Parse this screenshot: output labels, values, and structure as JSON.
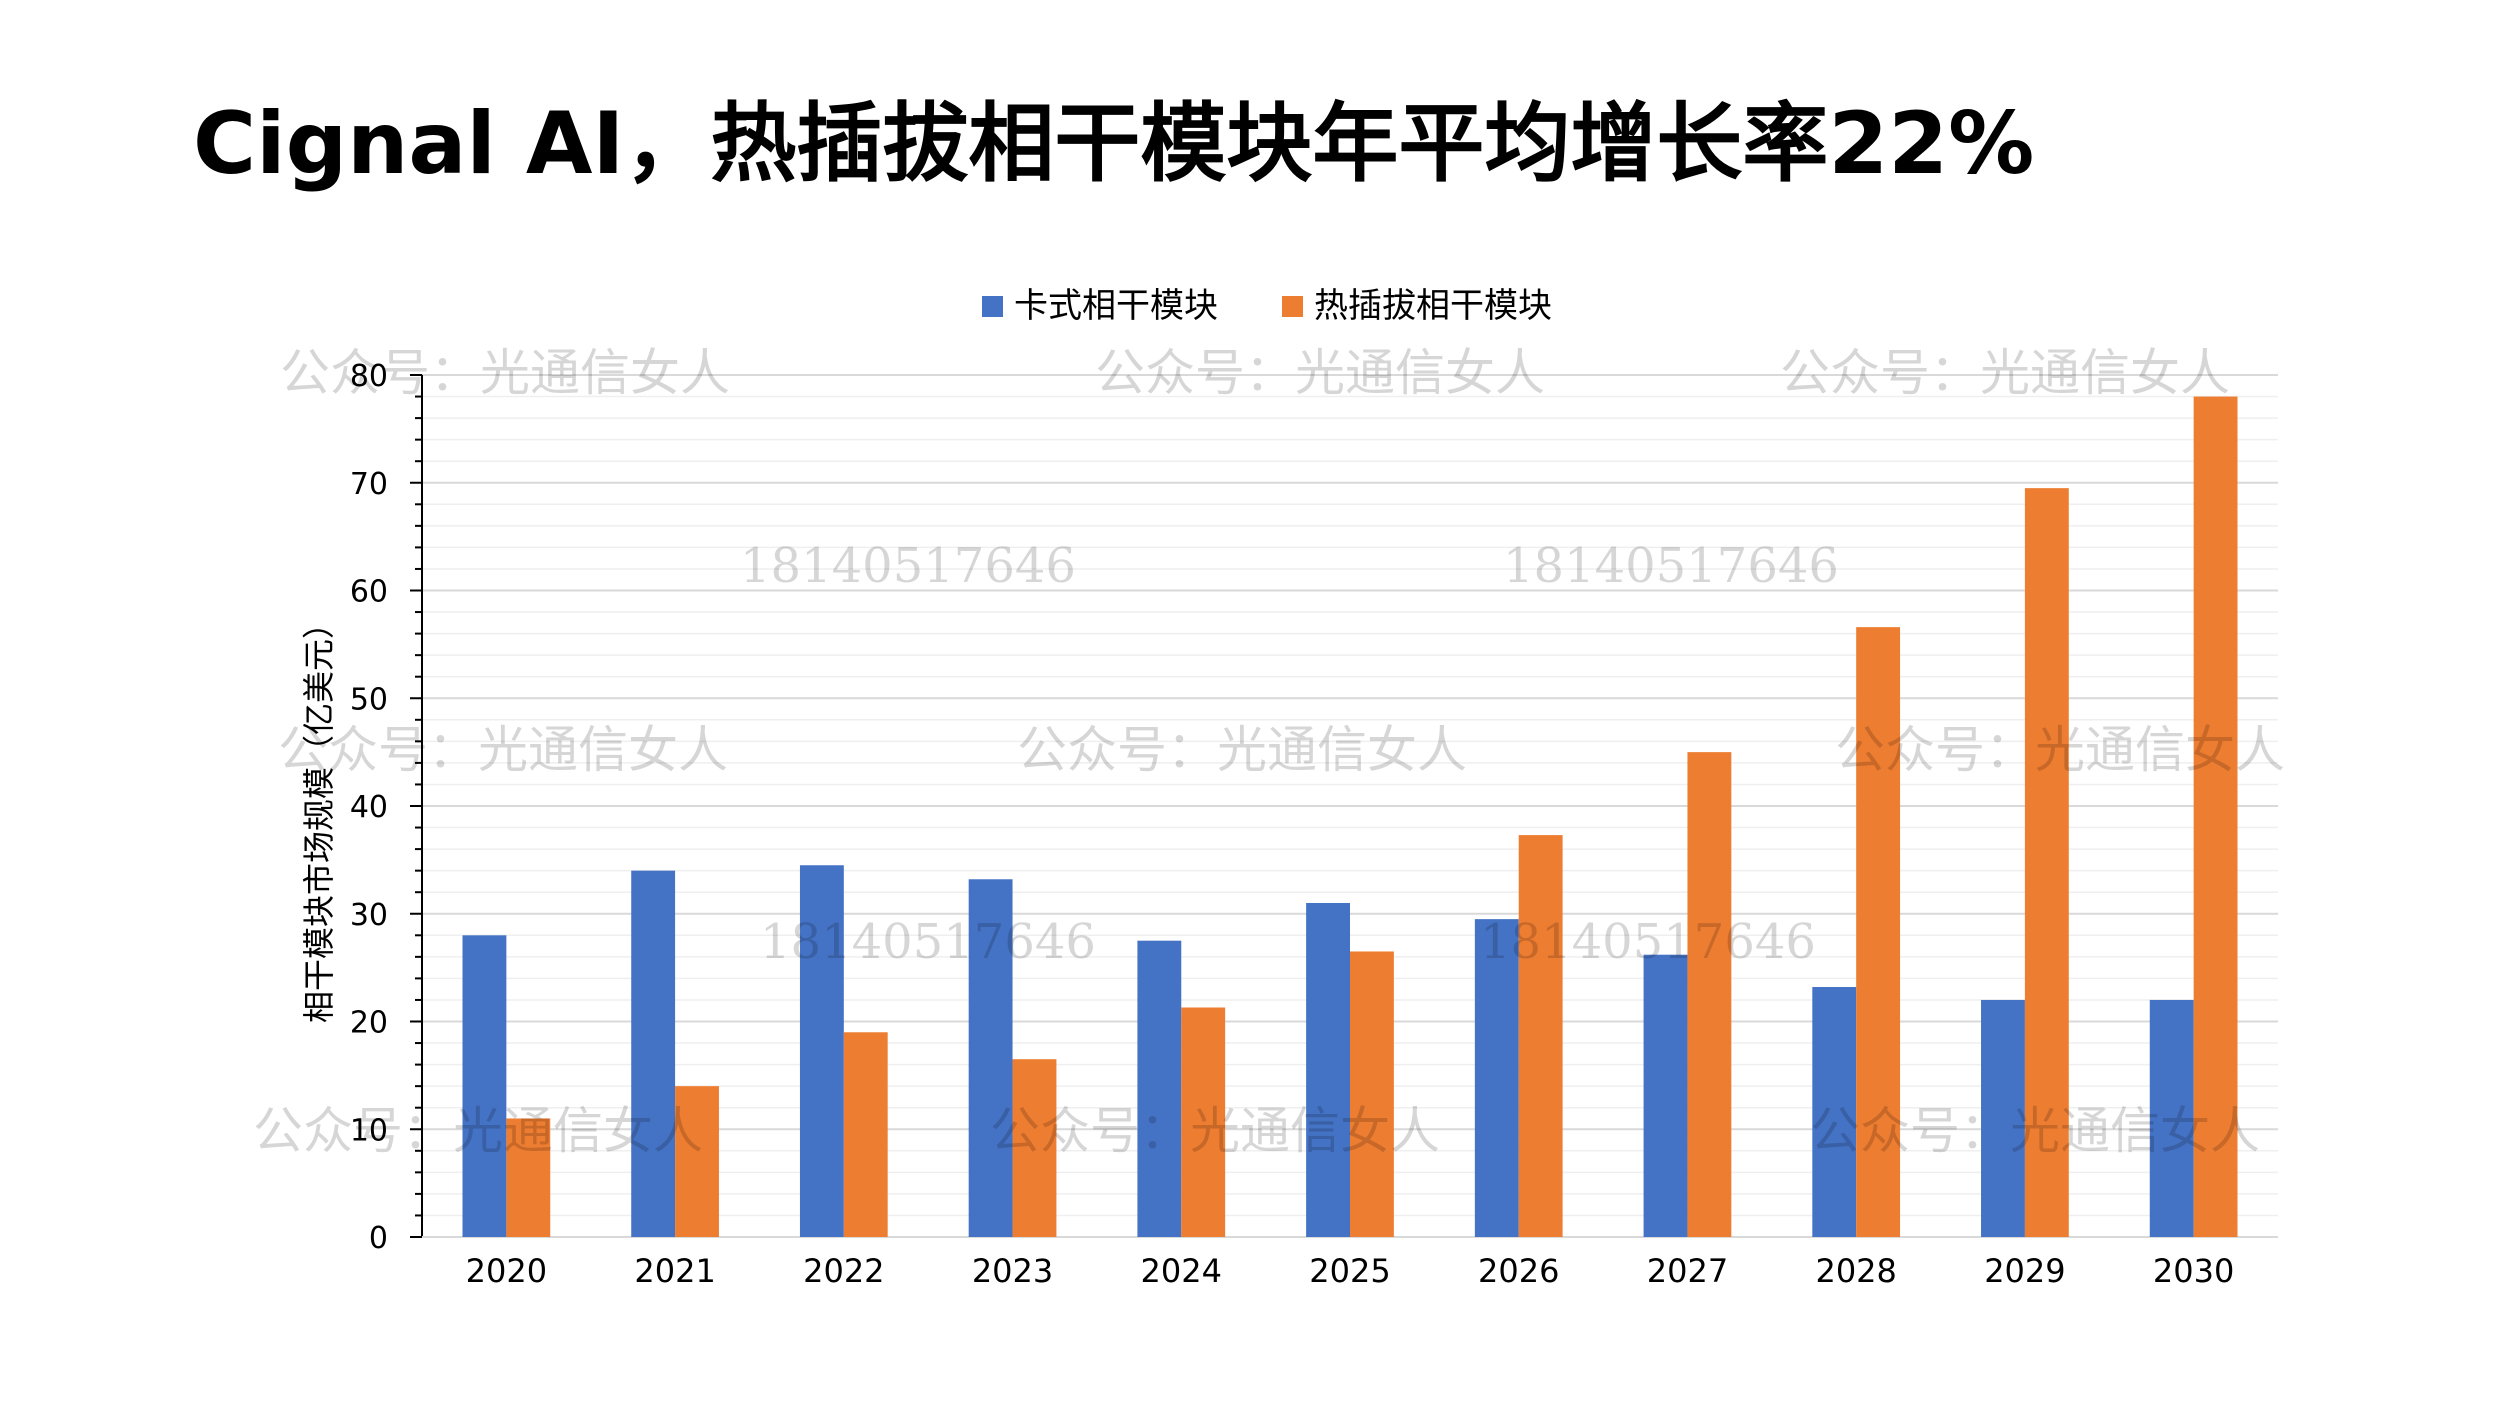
{
  "title": "Cignal AI，热插拔相干模块年平均增长率22%",
  "chart_data": {
    "type": "bar",
    "title": "",
    "xlabel": "",
    "ylabel": "相干模块市场规模（亿美元）",
    "ylim": [
      0,
      80
    ],
    "yticks": [
      0,
      10,
      20,
      30,
      40,
      50,
      60,
      70,
      80
    ],
    "grid": true,
    "legend_position": "top-center",
    "categories": [
      "2020",
      "2021",
      "2022",
      "2023",
      "2024",
      "2025",
      "2026",
      "2027",
      "2028",
      "2029",
      "2030"
    ],
    "series": [
      {
        "name": "卡式相干模块",
        "color": "#4472C4",
        "values": [
          28,
          34,
          34.5,
          33.2,
          27.5,
          31,
          29.5,
          26.2,
          23.2,
          22,
          22
        ]
      },
      {
        "name": "热插拔相干模块",
        "color": "#ED7D31",
        "values": [
          11,
          14,
          19,
          16.5,
          21.3,
          26.5,
          37.3,
          45,
          56.6,
          69.5,
          78
        ]
      }
    ]
  },
  "watermarks": {
    "account": "公众号：光通信女人",
    "phone": "18140517646"
  }
}
